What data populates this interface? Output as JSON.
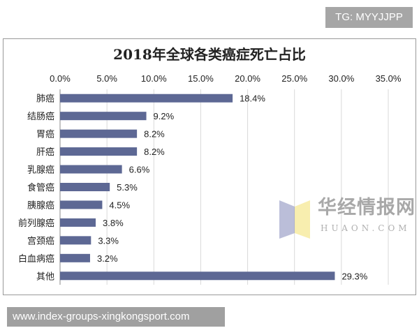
{
  "badge": "TG: MYYJJPP",
  "footer": "www.index-groups-xingkongsport.com",
  "watermark": {
    "name": "华经情报网",
    "url": "HUAON.COM"
  },
  "chart_data": {
    "type": "bar",
    "orientation": "horizontal",
    "title": "2018年全球各类癌症死亡占比",
    "categories": [
      "肺癌",
      "结肠癌",
      "胃癌",
      "肝癌",
      "乳腺癌",
      "食管癌",
      "胰腺癌",
      "前列腺癌",
      "宫颈癌",
      "白血病癌",
      "其他"
    ],
    "values": [
      18.4,
      9.2,
      8.2,
      8.2,
      6.6,
      5.3,
      4.5,
      3.8,
      3.3,
      3.2,
      29.3
    ],
    "data_labels": [
      "18.4%",
      "9.2%",
      "8.2%",
      "8.2%",
      "6.6%",
      "5.3%",
      "4.5%",
      "3.8%",
      "3.3%",
      "3.2%",
      "29.3%"
    ],
    "xlim": [
      0,
      35
    ],
    "x_ticks": [
      "0.0%",
      "5.0%",
      "10.0%",
      "15.0%",
      "20.0%",
      "25.0%",
      "30.0%",
      "35.0%"
    ],
    "x_axis_position": "top",
    "grid": true,
    "bar_color": "#5d6894"
  }
}
